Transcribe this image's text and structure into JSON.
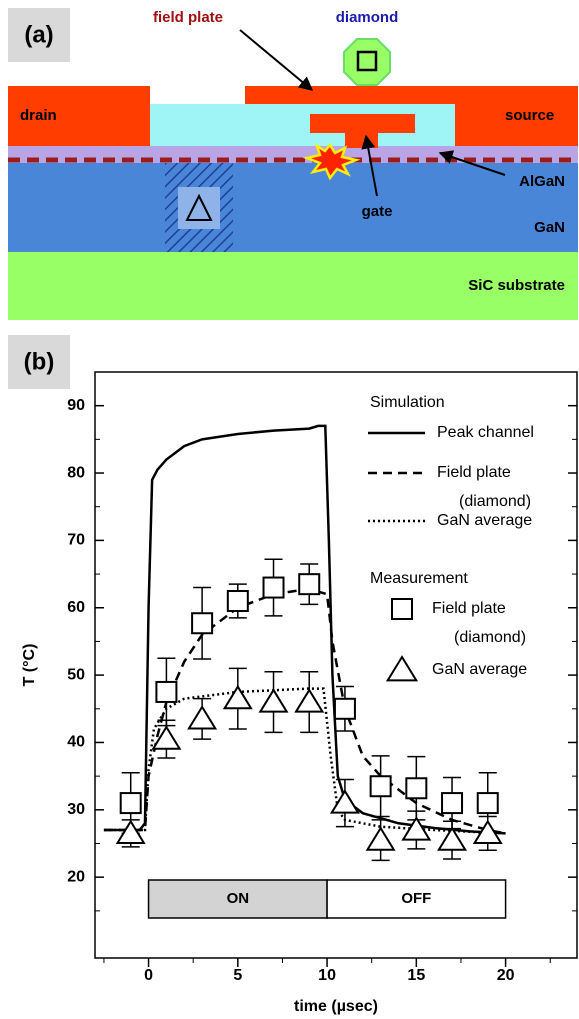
{
  "diagram": {
    "panel_label": "(a)",
    "field_plate": "field plate",
    "diamond": "diamond",
    "drain": "drain",
    "source": "source",
    "gate": "gate",
    "algan": "AlGaN",
    "gan": "GaN",
    "substrate": "SiC substrate"
  },
  "chart_data": {
    "type": "line",
    "panel_label": "(b)",
    "xlabel": "time (µsec)",
    "ylabel": "T (°C)",
    "xlim": [
      -3,
      24
    ],
    "ylim": [
      8,
      95
    ],
    "xticks": [
      0,
      5,
      10,
      15,
      20
    ],
    "yticks": [
      20,
      30,
      40,
      50,
      60,
      70,
      80,
      90
    ],
    "xminorticks": [
      -2.5,
      2.5,
      7.5,
      12.5,
      17.5,
      22.5
    ],
    "yminorticks": [
      15,
      25,
      35,
      45,
      55,
      65,
      75,
      85
    ],
    "phases": [
      {
        "label": "ON",
        "start": 0,
        "end": 10,
        "color": "#d3d3d3"
      },
      {
        "label": "OFF",
        "start": 10,
        "end": 20,
        "color": "#ffffff"
      }
    ],
    "legend_groups": [
      "Simulation",
      "Measurement"
    ],
    "series": [
      {
        "name": "Peak channel",
        "group": 0,
        "style": "solid",
        "color": "#000000",
        "x": [
          -2.5,
          -0.5,
          -0.2,
          0,
          0.2,
          0.5,
          1,
          2,
          3,
          5,
          7,
          9,
          9.5,
          9.9,
          10.1,
          10.3,
          10.6,
          11,
          12,
          14,
          16,
          18,
          20
        ],
        "values": [
          27,
          27,
          28,
          60,
          79,
          80.5,
          82,
          84,
          85,
          85.8,
          86.3,
          86.6,
          87,
          87,
          70,
          50,
          35,
          31.5,
          29.5,
          28,
          27.3,
          26.8,
          26.5
        ]
      },
      {
        "name": "Field plate (diamond)",
        "group": 0,
        "style": "dashed",
        "color": "#000000",
        "x": [
          -2.5,
          -0.2,
          0,
          0.5,
          1,
          2,
          3,
          5,
          7,
          9,
          10,
          10.3,
          11,
          12,
          13,
          15,
          17,
          19,
          20
        ],
        "values": [
          27,
          27,
          35,
          41,
          46,
          52,
          56,
          60,
          62,
          62.8,
          62,
          55,
          45,
          38,
          35,
          31,
          28.5,
          27,
          26.5
        ]
      },
      {
        "name": "GaN average",
        "group": 0,
        "style": "dotted",
        "color": "#000000",
        "x": [
          -2.5,
          -0.2,
          0,
          0.3,
          1,
          2,
          5,
          9,
          9.8,
          10.2,
          10.6,
          11,
          13,
          16,
          20
        ],
        "values": [
          27,
          27,
          36,
          42,
          45,
          46.5,
          47.5,
          48,
          48,
          38,
          30,
          28.5,
          27.5,
          27,
          26.5
        ]
      },
      {
        "name": "Field plate (diamond)",
        "group": 1,
        "style": "square",
        "color": "#000000",
        "x": [
          -1,
          1,
          3,
          5,
          7,
          9,
          11,
          13,
          15,
          17,
          19
        ],
        "values": [
          31,
          47.5,
          57.7,
          61,
          63,
          63.5,
          45,
          33.5,
          33.2,
          31,
          31
        ],
        "errors": [
          4.5,
          5,
          5.3,
          2.5,
          4.2,
          3,
          3.3,
          4.5,
          4.7,
          3.8,
          4.5
        ]
      },
      {
        "name": "GaN average",
        "group": 1,
        "style": "triangle",
        "color": "#000000",
        "x": [
          -1,
          1,
          3,
          5,
          7,
          9,
          11,
          13,
          15,
          17,
          19
        ],
        "values": [
          26.5,
          40.5,
          43.5,
          46.5,
          46,
          46,
          31,
          25.5,
          27,
          25.5,
          26.5
        ],
        "errors": [
          2,
          2.8,
          3,
          4.5,
          4.5,
          4.5,
          3.5,
          3,
          2.8,
          2.8,
          2.5
        ]
      }
    ]
  }
}
